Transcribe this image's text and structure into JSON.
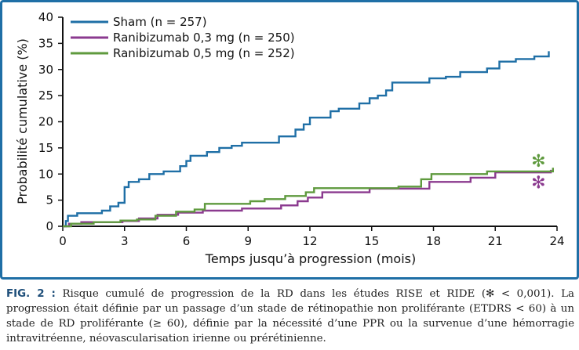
{
  "chart_data": {
    "type": "line",
    "step": true,
    "xlabel": "Temps jusqu’à progression (mois)",
    "ylabel": "Probabilité cumulative (%)",
    "xlim": [
      0,
      24
    ],
    "ylim": [
      0,
      40
    ],
    "xticks": [
      "0",
      "3",
      "6",
      "9",
      "12",
      "15",
      "18",
      "21",
      "24"
    ],
    "yticks": [
      "0",
      "5",
      "10",
      "15",
      "20",
      "25",
      "30",
      "35",
      "40"
    ],
    "legend_position": "top-left",
    "grid": false,
    "series": [
      {
        "name": "Sham (n = 257)",
        "color": "#1f6fa6",
        "points": [
          [
            0,
            0
          ],
          [
            0.15,
            1
          ],
          [
            0.25,
            2
          ],
          [
            0.7,
            2.5
          ],
          [
            1.9,
            3
          ],
          [
            2.3,
            3.8
          ],
          [
            2.7,
            4.5
          ],
          [
            3.0,
            7.5
          ],
          [
            3.2,
            8.5
          ],
          [
            3.7,
            9
          ],
          [
            4.2,
            10
          ],
          [
            4.9,
            10.5
          ],
          [
            5.7,
            11.5
          ],
          [
            6.0,
            12.5
          ],
          [
            6.2,
            13.5
          ],
          [
            7.0,
            14.2
          ],
          [
            7.6,
            15
          ],
          [
            8.2,
            15.4
          ],
          [
            8.7,
            16
          ],
          [
            9.0,
            16
          ],
          [
            10.5,
            17.2
          ],
          [
            11.3,
            18.5
          ],
          [
            11.7,
            19.5
          ],
          [
            12.0,
            20.8
          ],
          [
            13.0,
            22
          ],
          [
            13.4,
            22.5
          ],
          [
            14.4,
            23.5
          ],
          [
            14.9,
            24.5
          ],
          [
            15.3,
            25
          ],
          [
            15.7,
            26
          ],
          [
            16.0,
            27.5
          ],
          [
            17.1,
            27.5
          ],
          [
            17.8,
            28.3
          ],
          [
            18.6,
            28.6
          ],
          [
            19.3,
            29.5
          ],
          [
            20.6,
            30.2
          ],
          [
            21.2,
            31.5
          ],
          [
            22.0,
            32
          ],
          [
            22.9,
            32.5
          ],
          [
            23.6,
            33.5
          ]
        ]
      },
      {
        "name": "Ranibizumab 0,3 mg (n = 250)",
        "color": "#8b3a8f",
        "points": [
          [
            0,
            0
          ],
          [
            0.3,
            0.5
          ],
          [
            0.9,
            0.8
          ],
          [
            2.9,
            1.0
          ],
          [
            3.7,
            1.5
          ],
          [
            4.6,
            2.2
          ],
          [
            5.6,
            2.6
          ],
          [
            6.8,
            3
          ],
          [
            8.7,
            3.4
          ],
          [
            10.6,
            4
          ],
          [
            11.4,
            4.8
          ],
          [
            11.9,
            5.5
          ],
          [
            12.6,
            6.5
          ],
          [
            14.9,
            7.2
          ],
          [
            17.8,
            8.5
          ],
          [
            19.8,
            9.3
          ],
          [
            21.0,
            10.3
          ],
          [
            23.7,
            10.8
          ]
        ]
      },
      {
        "name": "Ranibizumab 0,5 mg (n = 252)",
        "color": "#5f9a3e",
        "points": [
          [
            0,
            0
          ],
          [
            0.4,
            0.5
          ],
          [
            1.5,
            0.8
          ],
          [
            2.8,
            1.1
          ],
          [
            3.6,
            1.3
          ],
          [
            4.5,
            2.0
          ],
          [
            5.5,
            2.8
          ],
          [
            6.4,
            3.2
          ],
          [
            6.9,
            4.3
          ],
          [
            9.1,
            4.8
          ],
          [
            9.8,
            5.2
          ],
          [
            10.8,
            5.8
          ],
          [
            11.8,
            6.5
          ],
          [
            12.2,
            7.3
          ],
          [
            16.3,
            7.6
          ],
          [
            17.4,
            9
          ],
          [
            17.9,
            10
          ],
          [
            20.6,
            10.5
          ],
          [
            23.3,
            10.5
          ],
          [
            23.8,
            11.2
          ]
        ]
      }
    ],
    "annotations": [
      {
        "text": "✻",
        "color": "#5f9a3e",
        "x": 23.1,
        "y": 12.4
      },
      {
        "text": "✻",
        "color": "#8b3a8f",
        "x": 23.1,
        "y": 8.3
      }
    ]
  },
  "caption": {
    "label": "FIG. 2 :",
    "text": "Risque cumulé de progression de la RD dans les études RISE et RIDE (✻ < 0,001). La progression était définie par un passage d’un stade de rétinopathie non proliférante (ETDRS < 60) à un stade de RD proliférante (≥ 60), définie par la nécessité d’une PPR ou la survenue d’une hémorragie intravitréenne, néovascularisation irienne ou prérétinienne."
  }
}
